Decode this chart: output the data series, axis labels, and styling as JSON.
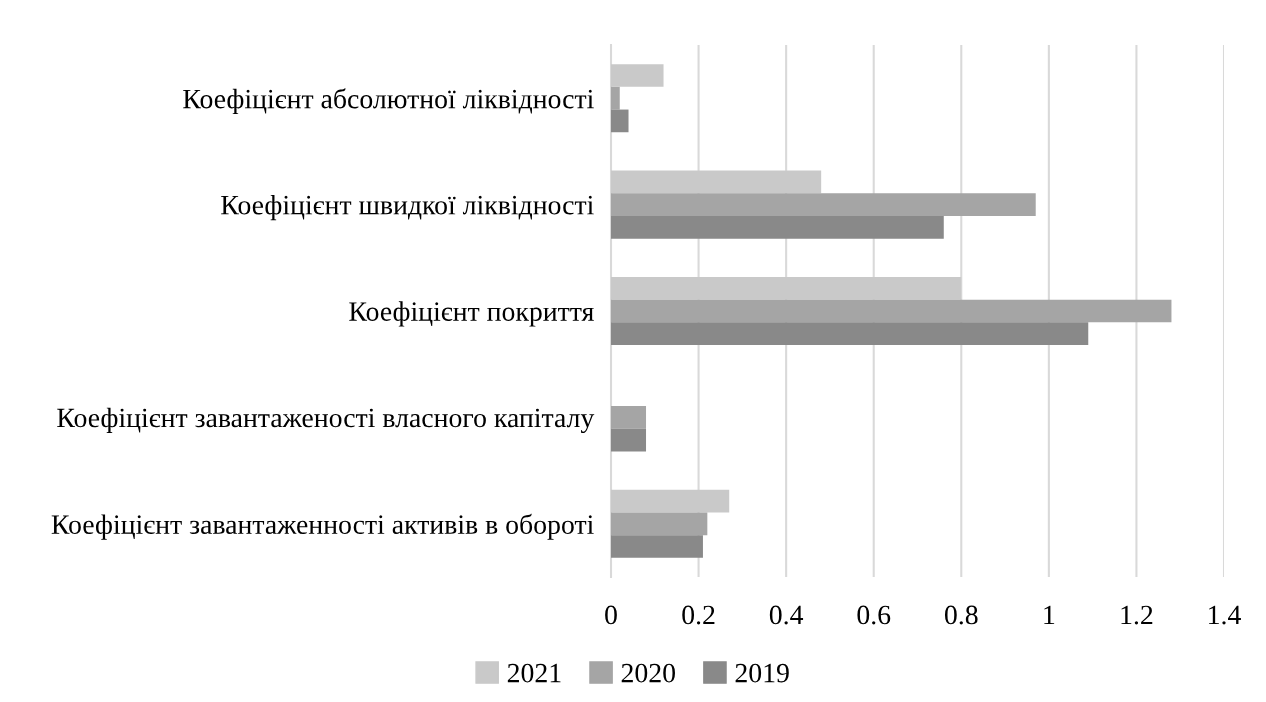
{
  "chart_data": {
    "type": "bar",
    "orientation": "horizontal",
    "categories": [
      "Коефіцієнт абсолютної ліквідності",
      "Коефіцієнт швидкої ліквідності",
      "Коефіцієнт покриття",
      "Коефіцієнт завантаженості власного капіталу",
      "Коефіцієнт завантаженності активів в обороті"
    ],
    "series": [
      {
        "name": "2021",
        "color": "#c9c9c9",
        "values": [
          0.12,
          0.48,
          0.8,
          0,
          0.27
        ]
      },
      {
        "name": "2020",
        "color": "#a5a5a5",
        "values": [
          0.02,
          0.97,
          1.28,
          0.08,
          0.22
        ]
      },
      {
        "name": "2019",
        "color": "#898989",
        "values": [
          0.04,
          0.76,
          1.09,
          0.08,
          0.21
        ]
      }
    ],
    "xlim": [
      0,
      1.4
    ],
    "xticks": [
      0,
      0.2,
      0.4,
      0.6,
      0.8,
      1,
      1.2,
      1.4
    ],
    "grid": "x",
    "legend": "bottom"
  }
}
